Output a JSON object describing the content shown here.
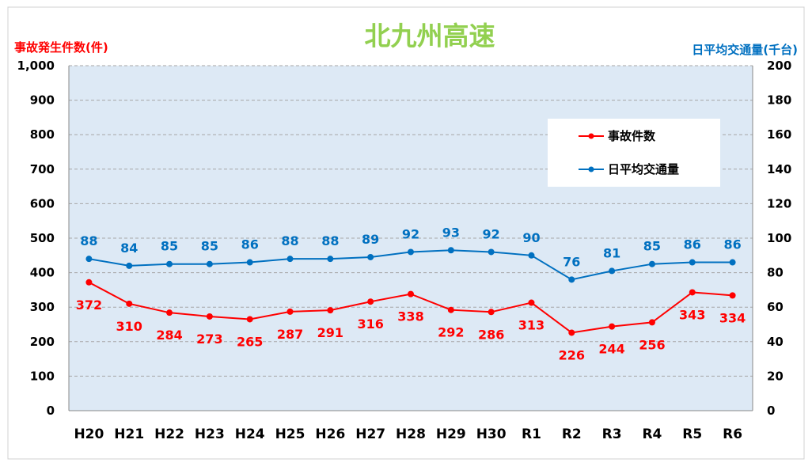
{
  "chart_data": {
    "type": "line",
    "title": "北九州高速",
    "ylabel_left": "事故発生件数(件)",
    "ylabel_right": "日平均交通量(千台)",
    "categories": [
      "H20",
      "H21",
      "H22",
      "H23",
      "H24",
      "H25",
      "H26",
      "H27",
      "H28",
      "H29",
      "H30",
      "R1",
      "R2",
      "R3",
      "R4",
      "R5",
      "R6"
    ],
    "y_left": {
      "range": [
        0,
        1000
      ],
      "ticks": [
        0,
        100,
        200,
        300,
        400,
        500,
        600,
        700,
        800,
        900,
        1000
      ],
      "tick_labels": [
        "0",
        "100",
        "200",
        "300",
        "400",
        "500",
        "600",
        "700",
        "800",
        "900",
        "1,000"
      ]
    },
    "y_right": {
      "range": [
        0,
        200
      ],
      "ticks": [
        0,
        20,
        40,
        60,
        80,
        100,
        120,
        140,
        160,
        180,
        200
      ],
      "tick_labels": [
        "0",
        "20",
        "40",
        "60",
        "80",
        "100",
        "120",
        "140",
        "160",
        "180",
        "200"
      ]
    },
    "grid": true,
    "legend_position": "top-right",
    "series": [
      {
        "name": "事故件数",
        "axis": "left",
        "color": "#ff0000",
        "values": [
          372,
          310,
          284,
          273,
          265,
          287,
          291,
          316,
          338,
          292,
          286,
          313,
          226,
          244,
          256,
          343,
          334
        ]
      },
      {
        "name": "日平均交通量",
        "axis": "right",
        "color": "#0070c0",
        "values": [
          88,
          84,
          85,
          85,
          86,
          88,
          88,
          89,
          92,
          93,
          92,
          90,
          76,
          81,
          85,
          86,
          86
        ]
      }
    ]
  },
  "colors": {
    "title": "#92d050",
    "left_axis_label": "#ff0000",
    "right_axis_label": "#0070c0",
    "plot_background": "#dde9f5",
    "gridline": "#a6a6a6"
  }
}
